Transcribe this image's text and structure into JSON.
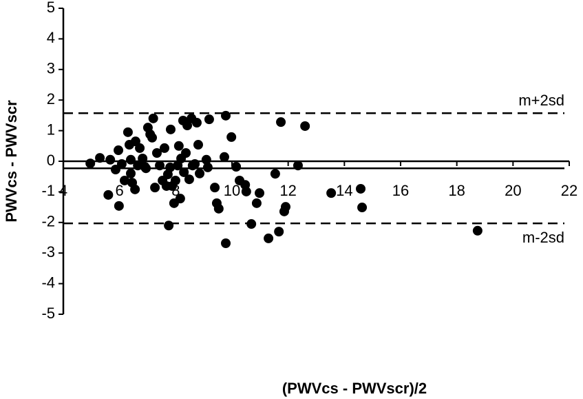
{
  "chart_data": {
    "type": "scatter",
    "x_label": "(PWVcs - PWVscr)/2",
    "y_label": "PWVcs - PWVscr",
    "xlim": [
      4,
      22
    ],
    "ylim": [
      -5,
      5
    ],
    "xticks": [
      4,
      6,
      8,
      10,
      12,
      14,
      16,
      18,
      20,
      22
    ],
    "yticks": [
      -5,
      -4,
      -3,
      -2,
      -1,
      0,
      1,
      2,
      3,
      4,
      5
    ],
    "color": "#000000",
    "reference_lines": [
      {
        "value": 1.57,
        "label": "m+2sd",
        "style": "dashed"
      },
      {
        "value": -0.23,
        "style": "solid"
      },
      {
        "value": -2.03,
        "label": "m-2sd",
        "style": "dashed"
      }
    ],
    "series": [
      {
        "x": [
          4.96,
          5.3,
          5.67,
          5.6,
          5.86,
          5.96,
          5.98,
          6.08,
          6.18,
          6.3,
          6.35,
          6.4,
          6.4,
          6.45,
          6.55,
          6.57,
          6.65,
          6.72,
          6.82,
          6.9,
          6.94,
          7.01,
          7.09,
          7.16,
          7.2,
          7.26,
          7.33,
          7.43,
          7.53,
          7.6,
          7.67,
          7.72,
          7.75,
          7.8,
          7.82,
          7.87,
          7.94,
          7.99,
          8.07,
          8.11,
          8.16,
          8.19,
          8.26,
          8.29,
          8.36,
          8.41,
          8.48,
          8.56,
          8.6,
          8.68,
          8.75,
          8.8,
          8.85,
          9.09,
          9.14,
          9.19,
          9.39,
          9.46,
          9.53,
          9.73,
          9.78,
          9.78,
          9.98,
          10.15,
          10.27,
          10.47,
          10.51,
          10.69,
          10.88,
          10.98,
          11.3,
          11.54,
          11.67,
          11.74,
          11.86,
          11.91,
          12.35,
          12.6,
          13.53,
          14.58,
          14.63,
          18.74
        ],
        "values": [
          -0.07,
          0.11,
          0.05,
          -1.1,
          -0.27,
          0.36,
          -1.46,
          -0.09,
          -0.63,
          0.95,
          0.54,
          0.05,
          -0.4,
          -0.7,
          -0.92,
          0.65,
          -0.14,
          0.43,
          0.09,
          -0.18,
          -0.23,
          1.1,
          0.88,
          0.77,
          1.4,
          -0.86,
          0.27,
          -0.14,
          -0.63,
          0.43,
          -0.81,
          -0.43,
          -2.1,
          -0.2,
          1.04,
          -0.81,
          -1.37,
          -0.63,
          -0.14,
          0.5,
          -1.22,
          0.09,
          1.33,
          -0.36,
          0.27,
          1.17,
          -0.59,
          1.4,
          -0.14,
          -0.09,
          1.26,
          0.54,
          -0.4,
          0.05,
          -0.2,
          1.37,
          -0.86,
          -1.37,
          -1.55,
          0.14,
          1.49,
          -2.68,
          0.79,
          -0.18,
          -0.63,
          -0.77,
          -0.99,
          -2.05,
          -1.37,
          -1.04,
          -2.52,
          -0.41,
          -2.3,
          1.28,
          -1.64,
          -1.49,
          -0.14,
          1.15,
          -1.04,
          -0.9,
          -1.51,
          -2.27
        ]
      }
    ]
  }
}
